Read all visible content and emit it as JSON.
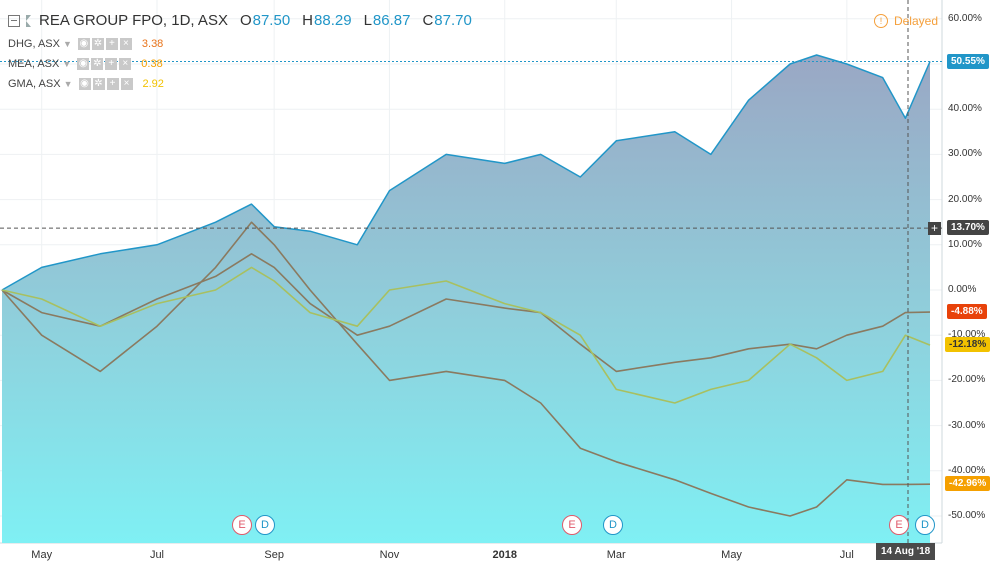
{
  "header": {
    "title": "REA GROUP FPO, 1D, ASX",
    "ohlc": [
      {
        "k": "O",
        "v": "87.50"
      },
      {
        "k": "H",
        "v": "88.29"
      },
      {
        "k": "L",
        "v": "86.87"
      },
      {
        "k": "C",
        "v": "87.70"
      }
    ],
    "delayed": "Delayed"
  },
  "legend": [
    {
      "name": "DHG, ASX",
      "value": "3.38",
      "color": "#e8731a"
    },
    {
      "name": "MEA, ASX",
      "value": "0.38",
      "color": "#f5a000"
    },
    {
      "name": "GMA, ASX",
      "value": "2.92",
      "color": "#f2c200"
    }
  ],
  "axis": {
    "y_ticks": [
      "60.00%",
      "50.00%",
      "40.00%",
      "30.00%",
      "20.00%",
      "10.00%",
      "0.00%",
      "-10.00%",
      "-20.00%",
      "-30.00%",
      "-40.00%",
      "-50.00%"
    ],
    "x_ticks": [
      {
        "label": "May",
        "bold": false
      },
      {
        "label": "Jul",
        "bold": false
      },
      {
        "label": "Sep",
        "bold": false
      },
      {
        "label": "Nov",
        "bold": false
      },
      {
        "label": "2018",
        "bold": true
      },
      {
        "label": "Mar",
        "bold": false
      },
      {
        "label": "May",
        "bold": false
      },
      {
        "label": "Jul",
        "bold": false
      }
    ],
    "current_date": "14 Aug '18"
  },
  "price_tags": [
    {
      "text": "50.55%",
      "color": "#2196c8"
    },
    {
      "text": "13.70%",
      "color": "#444444"
    },
    {
      "text": "-4.88%",
      "color": "#e8420a"
    },
    {
      "text": "-12.18%",
      "color": "#f2c200"
    },
    {
      "text": "-42.96%",
      "color": "#f5a000"
    }
  ],
  "events": [
    {
      "type": "E"
    },
    {
      "type": "D"
    },
    {
      "type": "E"
    },
    {
      "type": "D"
    },
    {
      "type": "E"
    },
    {
      "type": "D"
    }
  ],
  "chart_data": {
    "type": "area",
    "xlabel": "",
    "ylabel": "",
    "x": [
      "2017-04-10",
      "2017-05-01",
      "2017-06-01",
      "2017-07-01",
      "2017-08-01",
      "2017-08-20",
      "2017-09-01",
      "2017-09-20",
      "2017-10-15",
      "2017-11-01",
      "2017-12-01",
      "2018-01-01",
      "2018-01-20",
      "2018-02-10",
      "2018-03-01",
      "2018-04-01",
      "2018-04-20",
      "2018-05-10",
      "2018-06-01",
      "2018-06-15",
      "2018-07-01",
      "2018-07-20",
      "2018-08-01",
      "2018-08-14"
    ],
    "ylim": [
      -55,
      62
    ],
    "series": [
      {
        "name": "REA GROUP FPO",
        "color": "#2196c8",
        "values": [
          0,
          5,
          8,
          10,
          15,
          19,
          14,
          13,
          10,
          22,
          30,
          28,
          30,
          25,
          33,
          35,
          30,
          42,
          50,
          52,
          50,
          47,
          38,
          50.55
        ]
      },
      {
        "name": "DHG, ASX",
        "color": "#8a7a60",
        "values": [
          0,
          -10,
          -18,
          -8,
          5,
          15,
          10,
          0,
          -12,
          -20,
          -18,
          -20,
          -25,
          -35,
          -38,
          -42,
          -45,
          -48,
          -50,
          -48,
          -42,
          -43,
          -43,
          -42.96
        ]
      },
      {
        "name": "MEA, ASX",
        "color": "#8a7a60",
        "values": [
          0,
          -5,
          -8,
          -2,
          3,
          8,
          5,
          -3,
          -10,
          -8,
          -2,
          -4,
          -5,
          -12,
          -18,
          -16,
          -15,
          -13,
          -12,
          -13,
          -10,
          -8,
          -5,
          -4.88
        ]
      },
      {
        "name": "GMA, ASX",
        "color": "#a8c060",
        "values": [
          0,
          -2,
          -8,
          -3,
          0,
          5,
          2,
          -5,
          -8,
          0,
          2,
          -3,
          -5,
          -10,
          -22,
          -25,
          -22,
          -20,
          -12,
          -15,
          -20,
          -18,
          -10,
          -12.18
        ]
      }
    ],
    "crosshair_y": 13.7
  }
}
